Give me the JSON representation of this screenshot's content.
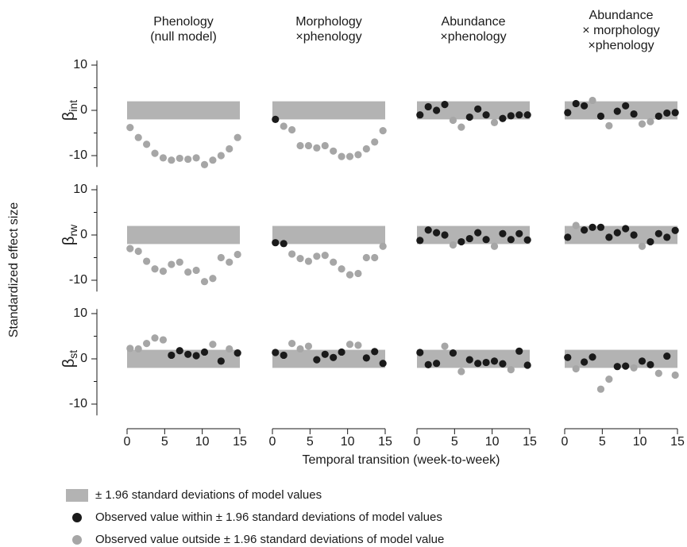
{
  "column_titles": [
    [
      "Phenology",
      "(null model)"
    ],
    [
      "Morphology",
      "×phenology"
    ],
    [
      "Abundance",
      "×phenology"
    ],
    [
      "Abundance",
      "× morphology",
      "×phenology"
    ]
  ],
  "row_labels": [
    {
      "symbol": "β",
      "subscript": "int"
    },
    {
      "symbol": "β",
      "subscript": "rw"
    },
    {
      "symbol": "β",
      "subscript": "st"
    }
  ],
  "y_label": "Standardized effect size",
  "x_label": "Temporal transition (week-to-week)",
  "axes": {
    "xlim": [
      0,
      15
    ],
    "ylim": [
      -12.5,
      11
    ],
    "xticks": [
      0,
      5,
      10,
      15
    ],
    "yticks": [
      -10,
      0,
      10
    ],
    "band": [
      -2,
      2
    ],
    "band_color": "#b3b3b3"
  },
  "legend": [
    {
      "label": "± 1.96 standard deviations of model values",
      "color": "#b3b3b3"
    },
    {
      "label": "Observed value within ± 1.96 standard deviations of model values",
      "color": "#1a1a1a"
    },
    {
      "label": "Observed value outside ± 1.96 standard deviations of model value",
      "color": "#a6a6a6"
    }
  ],
  "chart_data": [
    {
      "type": "scatter",
      "series": [
        {
          "color": "#1a1a1a",
          "x": [],
          "values": []
        },
        {
          "color": "#a6a6a6",
          "x": [
            0.4,
            1.5,
            2.6,
            3.7,
            4.8,
            5.9,
            7,
            8.1,
            9.2,
            10.3,
            11.4,
            12.5,
            13.6,
            14.7
          ],
          "values": [
            -3.8,
            -6,
            -7.5,
            -9.5,
            -10.5,
            -11,
            -10.6,
            -10.8,
            -10.5,
            -12,
            -11,
            -10,
            -8.5,
            -6
          ]
        }
      ]
    },
    {
      "type": "scatter",
      "series": [
        {
          "color": "#1a1a1a",
          "x": [
            0.4
          ],
          "values": [
            -2
          ]
        },
        {
          "color": "#a6a6a6",
          "x": [
            1.5,
            2.6,
            3.7,
            4.8,
            5.9,
            7,
            8.1,
            9.2,
            10.3,
            11.4,
            12.5,
            13.6,
            14.7
          ],
          "values": [
            -3.5,
            -4.3,
            -7.8,
            -7.8,
            -8.3,
            -7.8,
            -9,
            -10.2,
            -10.2,
            -9.8,
            -8.5,
            -7,
            -4.5
          ]
        }
      ]
    },
    {
      "type": "scatter",
      "series": [
        {
          "color": "#1a1a1a",
          "x": [
            0.4,
            1.5,
            2.6,
            3.7,
            7,
            8.1,
            9.2,
            11.4,
            12.5,
            13.6,
            14.7
          ],
          "values": [
            -1,
            0.8,
            0,
            1.3,
            -1.5,
            0.3,
            -1,
            -1.8,
            -1.2,
            -1,
            -1
          ]
        },
        {
          "color": "#a6a6a6",
          "x": [
            4.8,
            5.9,
            10.3
          ],
          "values": [
            -2.2,
            -3.7,
            -2.7
          ]
        }
      ]
    },
    {
      "type": "scatter",
      "series": [
        {
          "color": "#1a1a1a",
          "x": [
            0.4,
            1.5,
            2.6,
            4.8,
            7,
            8.1,
            9.2,
            12.5,
            13.6,
            14.7
          ],
          "values": [
            -0.5,
            1.5,
            1,
            -1.3,
            -0.2,
            1,
            -0.8,
            -1.3,
            -0.6,
            -0.5
          ]
        },
        {
          "color": "#a6a6a6",
          "x": [
            3.7,
            5.9,
            10.3,
            11.4
          ],
          "values": [
            2.2,
            -3.4,
            -3,
            -2.5
          ]
        }
      ]
    },
    {
      "type": "scatter",
      "series": [
        {
          "color": "#1a1a1a",
          "x": [],
          "values": []
        },
        {
          "color": "#a6a6a6",
          "x": [
            0.4,
            1.5,
            2.6,
            3.7,
            4.8,
            5.9,
            7,
            8.1,
            9.2,
            10.3,
            11.4,
            12.5,
            13.6,
            14.7
          ],
          "values": [
            -3,
            -3.6,
            -5.8,
            -7.5,
            -8,
            -6.5,
            -6,
            -8.2,
            -7.8,
            -10.3,
            -9.6,
            -5,
            -6,
            -4.3
          ]
        }
      ]
    },
    {
      "type": "scatter",
      "series": [
        {
          "color": "#1a1a1a",
          "x": [
            0.4,
            1.5
          ],
          "values": [
            -1.7,
            -1.9
          ]
        },
        {
          "color": "#a6a6a6",
          "x": [
            2.6,
            3.7,
            4.8,
            5.9,
            7,
            8.1,
            9.2,
            10.3,
            11.4,
            12.5,
            13.6,
            14.7
          ],
          "values": [
            -4.2,
            -5.2,
            -5.8,
            -4.7,
            -4.5,
            -6,
            -7.5,
            -8.8,
            -8.5,
            -5,
            -5,
            -2.5
          ]
        }
      ]
    },
    {
      "type": "scatter",
      "series": [
        {
          "color": "#1a1a1a",
          "x": [
            0.4,
            1.5,
            2.6,
            3.7,
            5.9,
            7,
            8.1,
            9.2,
            11.4,
            12.5,
            13.6,
            14.7
          ],
          "values": [
            -1.2,
            1.1,
            0.5,
            0,
            -1.5,
            -0.8,
            0.5,
            -1,
            0.3,
            -1,
            0.3,
            -1.1
          ]
        },
        {
          "color": "#a6a6a6",
          "x": [
            4.8,
            10.3
          ],
          "values": [
            -2.2,
            -2.5
          ]
        }
      ]
    },
    {
      "type": "scatter",
      "series": [
        {
          "color": "#1a1a1a",
          "x": [
            0.4,
            2.6,
            3.7,
            4.8,
            5.9,
            7,
            8.1,
            9.2,
            11.4,
            12.5,
            13.6,
            14.7
          ],
          "values": [
            -0.5,
            1.1,
            1.7,
            1.7,
            -0.5,
            0.5,
            1.4,
            0,
            -1.5,
            0.3,
            -0.5,
            1
          ]
        },
        {
          "color": "#a6a6a6",
          "x": [
            1.5,
            10.3
          ],
          "values": [
            2.1,
            -2.5
          ]
        }
      ]
    },
    {
      "type": "scatter",
      "series": [
        {
          "color": "#1a1a1a",
          "x": [
            5.9,
            7,
            8.1,
            9.2,
            10.3,
            12.5,
            14.7
          ],
          "values": [
            0.8,
            1.8,
            1,
            0.7,
            1.5,
            -0.5,
            1.3
          ]
        },
        {
          "color": "#a6a6a6",
          "x": [
            0.4,
            1.5,
            2.6,
            3.7,
            4.8,
            11.4,
            13.6
          ],
          "values": [
            2.3,
            2.2,
            3.4,
            4.6,
            4.2,
            3.2,
            2.2
          ]
        }
      ]
    },
    {
      "type": "scatter",
      "series": [
        {
          "color": "#1a1a1a",
          "x": [
            0.4,
            1.5,
            5.9,
            7,
            8.1,
            9.2,
            12.5,
            13.6,
            14.7
          ],
          "values": [
            1.4,
            0.8,
            -0.2,
            1,
            0.3,
            1.5,
            0.2,
            1.6,
            -1
          ]
        },
        {
          "color": "#a6a6a6",
          "x": [
            2.6,
            3.7,
            4.8,
            10.3,
            11.4
          ],
          "values": [
            3.4,
            2.2,
            2.8,
            3.2,
            3
          ]
        }
      ]
    },
    {
      "type": "scatter",
      "series": [
        {
          "color": "#1a1a1a",
          "x": [
            0.4,
            1.5,
            2.6,
            4.8,
            7,
            8.1,
            9.2,
            10.3,
            11.4,
            13.6,
            14.7
          ],
          "values": [
            1.4,
            -1.3,
            -1,
            1.3,
            -0.2,
            -1,
            -0.8,
            -0.5,
            -1.1,
            1.7,
            -1.4
          ]
        },
        {
          "color": "#a6a6a6",
          "x": [
            3.7,
            5.9,
            12.5
          ],
          "values": [
            2.8,
            -2.8,
            -2.4
          ]
        }
      ]
    },
    {
      "type": "scatter",
      "series": [
        {
          "color": "#1a1a1a",
          "x": [
            0.4,
            2.6,
            3.7,
            7,
            8.1,
            10.3,
            11.4,
            13.6
          ],
          "values": [
            0.3,
            -0.7,
            0.4,
            -1.7,
            -1.6,
            -0.5,
            -1.3,
            0.6
          ]
        },
        {
          "color": "#a6a6a6",
          "x": [
            1.5,
            4.8,
            5.9,
            9.2,
            12.5,
            14.7
          ],
          "values": [
            -2.2,
            -6.7,
            -4.5,
            -2,
            -3.2,
            -3.6
          ]
        }
      ]
    }
  ]
}
